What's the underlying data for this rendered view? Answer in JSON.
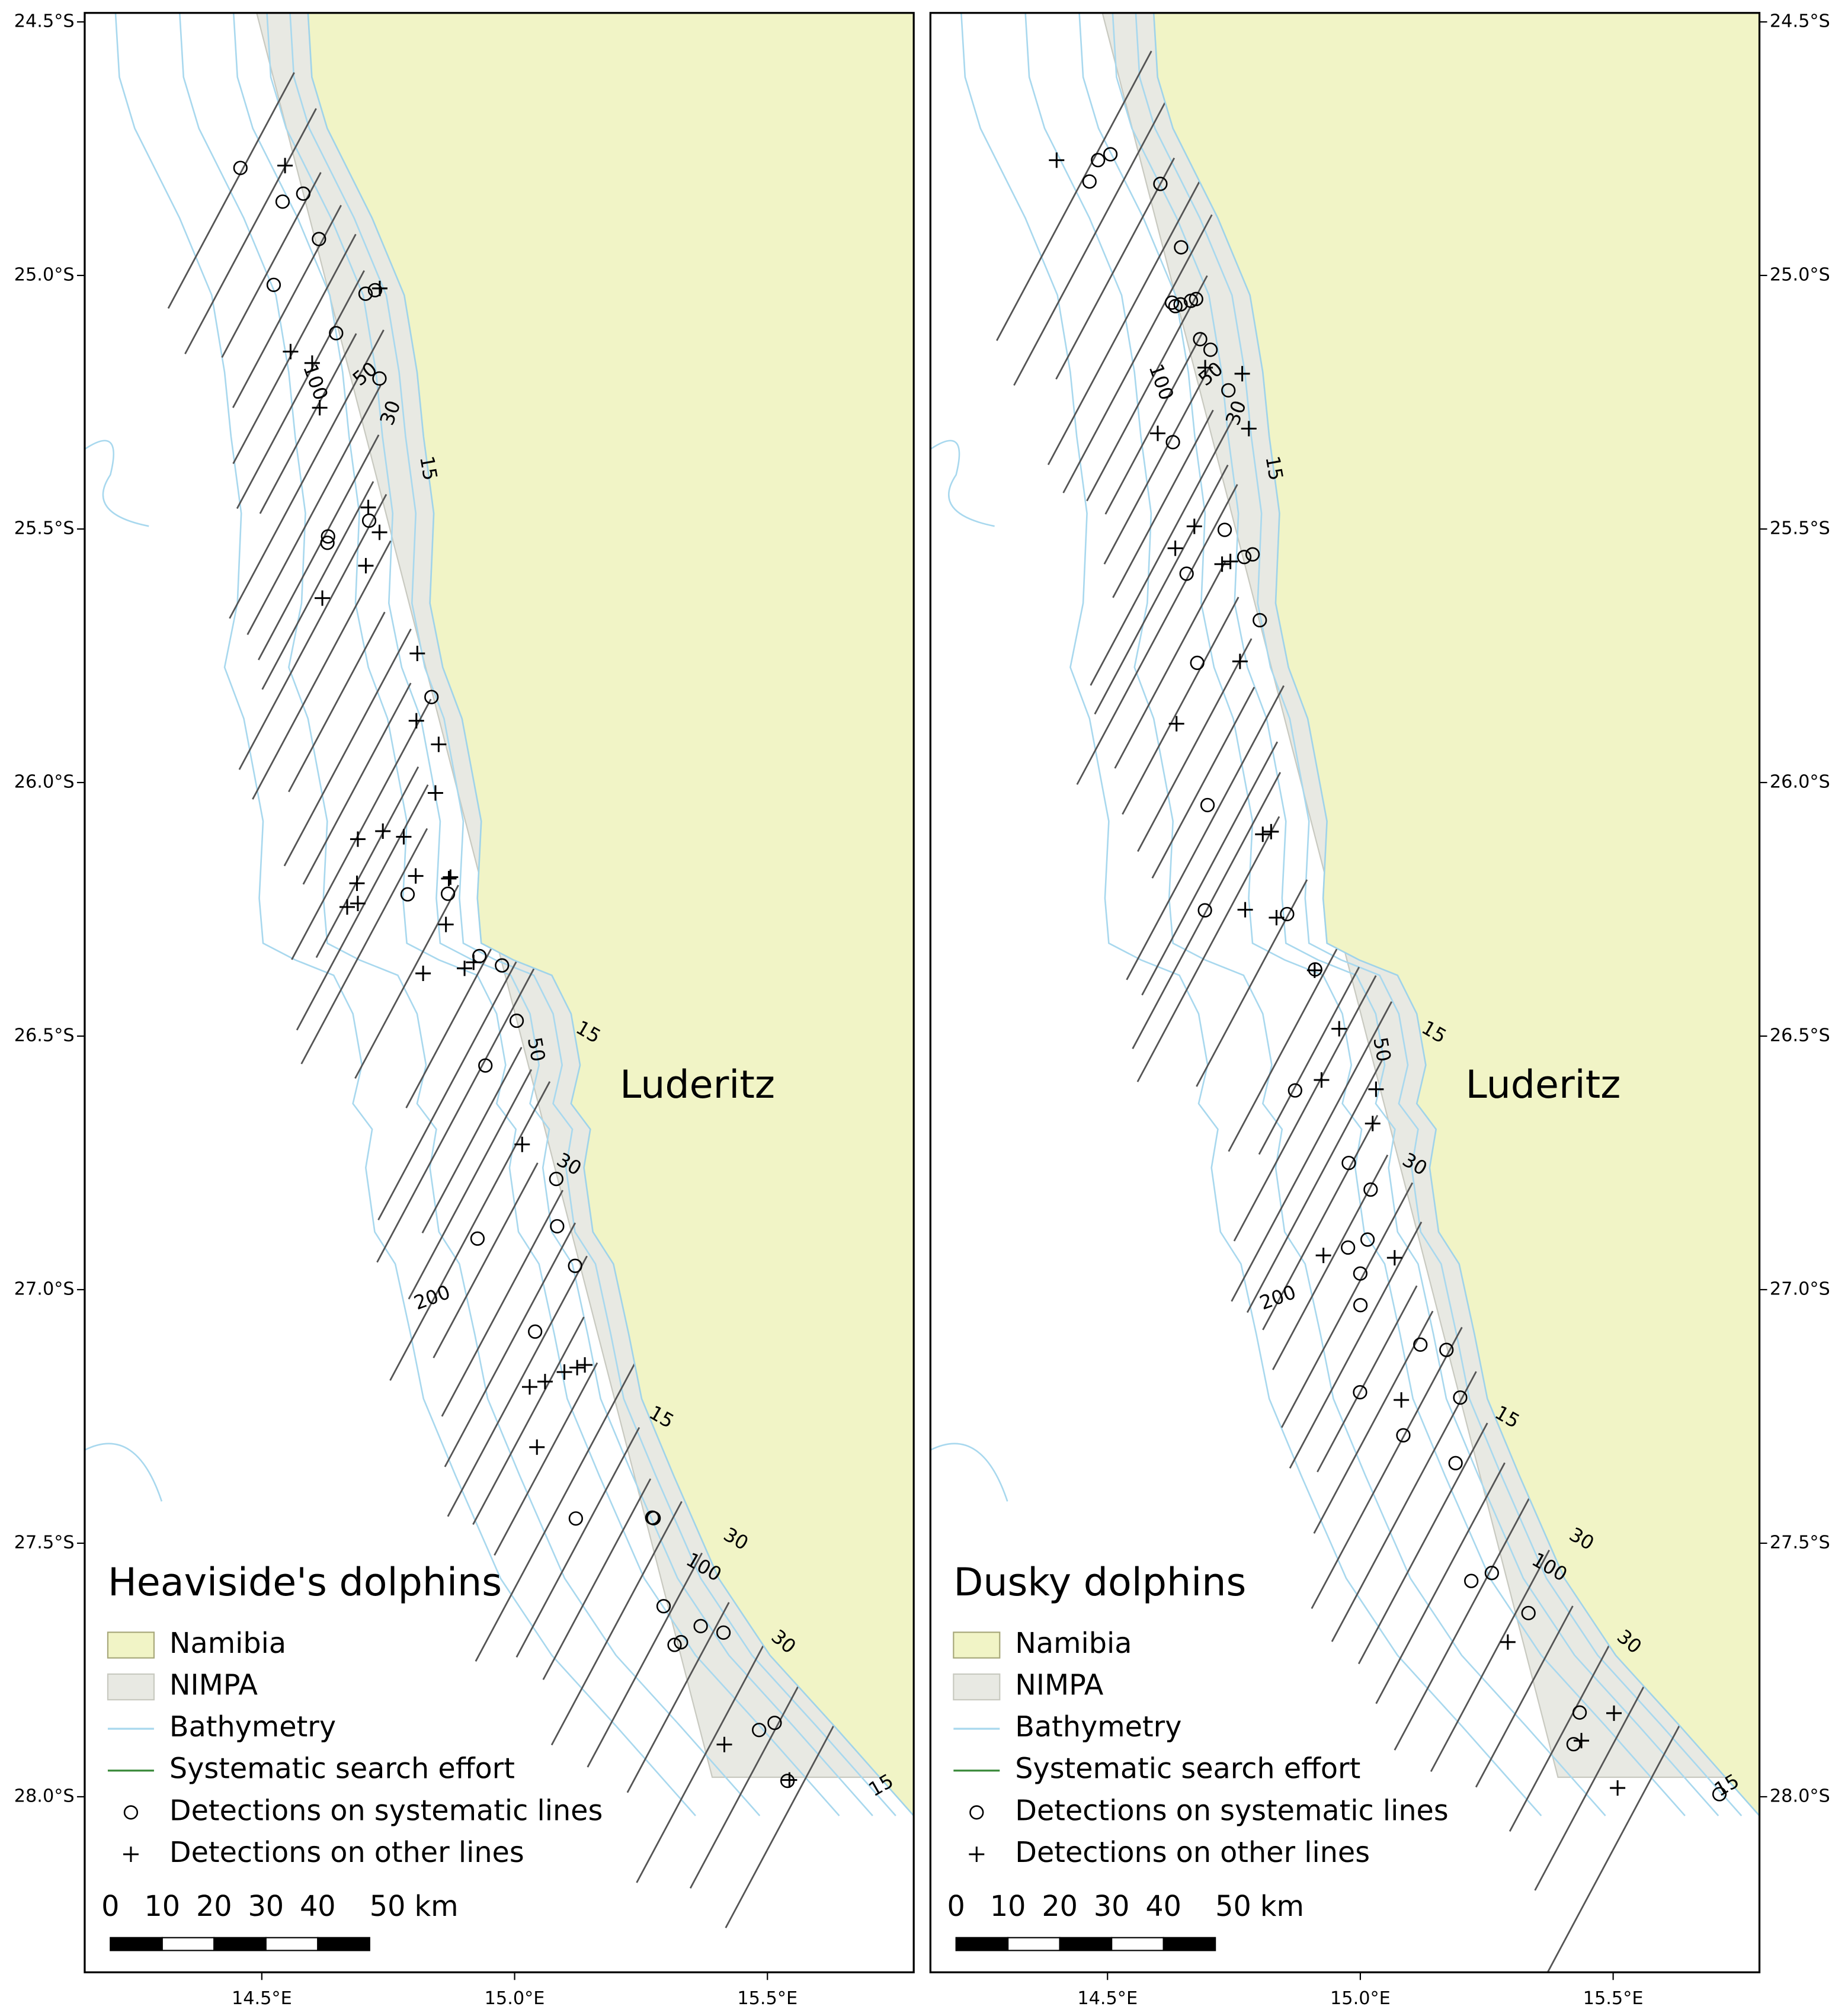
{
  "panels": [
    {
      "title": "Heaviside's dolphins",
      "legend": [
        "Namibia",
        "NIMPA",
        "Bathymetry",
        "Systematic search effort",
        "Detections on systematic lines",
        "Detections on other lines"
      ],
      "depth_labels": [
        "100",
        "50",
        "30",
        "15",
        "50",
        "15",
        "30",
        "200",
        "15",
        "30",
        "100",
        "30",
        "15"
      ]
    },
    {
      "title": "Dusky dolphins",
      "legend": [
        "Namibia",
        "NIMPA",
        "Bathymetry",
        "Systematic search effort",
        "Detections on systematic lines",
        "Detections on other lines"
      ],
      "depth_labels": [
        "100",
        "50",
        "30",
        "15",
        "50",
        "15",
        "30",
        "200",
        "15",
        "30",
        "100",
        "30",
        "15"
      ]
    }
  ],
  "place_label": "Luderitz",
  "lat_ticks": [
    "24.5°S",
    "25.0°S",
    "25.5°S",
    "26.0°S",
    "26.5°S",
    "27.0°S",
    "27.5°S",
    "28.0°S"
  ],
  "lon_ticks": [
    "14.5°E",
    "15.0°E",
    "15.5°E"
  ],
  "scale_bar": [
    "0",
    "10",
    "20",
    "30",
    "40",
    "50 km"
  ]
}
